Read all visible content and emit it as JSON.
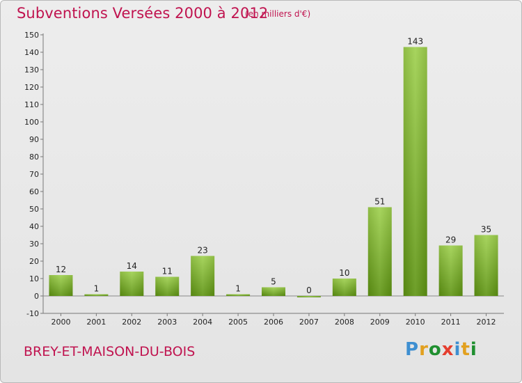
{
  "header": {
    "title": "Subventions Versées 2000 à 2012",
    "unit": "(en milliers d'€)"
  },
  "footer": {
    "place": "BREY-ET-MAISON-DU-BOIS",
    "logo": "Proxiti"
  },
  "colors": {
    "title": "#c0134f",
    "bar_light": "#9ed04d",
    "bar_dark": "#5e9412",
    "logo": [
      "#3e8fd1",
      "#e2a01f",
      "#1f8f2f",
      "#e53e2f",
      "#3e8fd1",
      "#e2a01f",
      "#1f8f2f"
    ]
  },
  "chart_data": {
    "type": "bar",
    "title": "Subventions Versées 2000 à 2012",
    "subtitle": "(en milliers d'€)",
    "categories": [
      "2000",
      "2001",
      "2002",
      "2003",
      "2004",
      "2005",
      "2006",
      "2007",
      "2008",
      "2009",
      "2010",
      "2011",
      "2012"
    ],
    "values": [
      12,
      1,
      14,
      11,
      23,
      1,
      5,
      0,
      10,
      51,
      143,
      29,
      35
    ],
    "ylim": [
      -10,
      150
    ],
    "yticks": [
      -10,
      0,
      10,
      20,
      30,
      40,
      50,
      60,
      70,
      80,
      90,
      100,
      110,
      120,
      130,
      140,
      150
    ],
    "grid": false,
    "legend": "none"
  }
}
